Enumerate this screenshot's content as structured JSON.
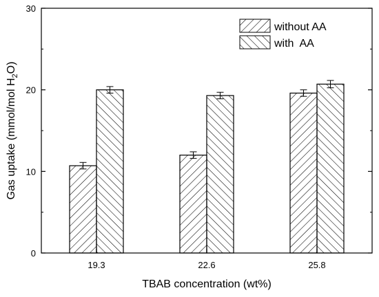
{
  "chart_data": {
    "type": "bar",
    "categories": [
      "19.3",
      "22.6",
      "25.8"
    ],
    "series": [
      {
        "name": "without AA",
        "values": [
          10.7,
          12.0,
          19.6
        ],
        "errors": [
          0.4,
          0.4,
          0.4
        ],
        "hatch": "diagonal-up"
      },
      {
        "name": "with  AA",
        "values": [
          20.0,
          19.3,
          20.7
        ],
        "errors": [
          0.4,
          0.4,
          0.45
        ],
        "hatch": "diagonal-down"
      }
    ],
    "xlabel": "TBAB concentration (wt%)",
    "ylabel": "Gas uptake (mmol/mol H2O)",
    "ylabel_parts": {
      "pre": "Gas uptake (mmol/mol H",
      "sub": "2",
      "post": "O)"
    },
    "ylim": [
      0,
      30
    ],
    "yticks": [
      0,
      10,
      20,
      30
    ],
    "grid": false,
    "legend_position": "top-right"
  }
}
